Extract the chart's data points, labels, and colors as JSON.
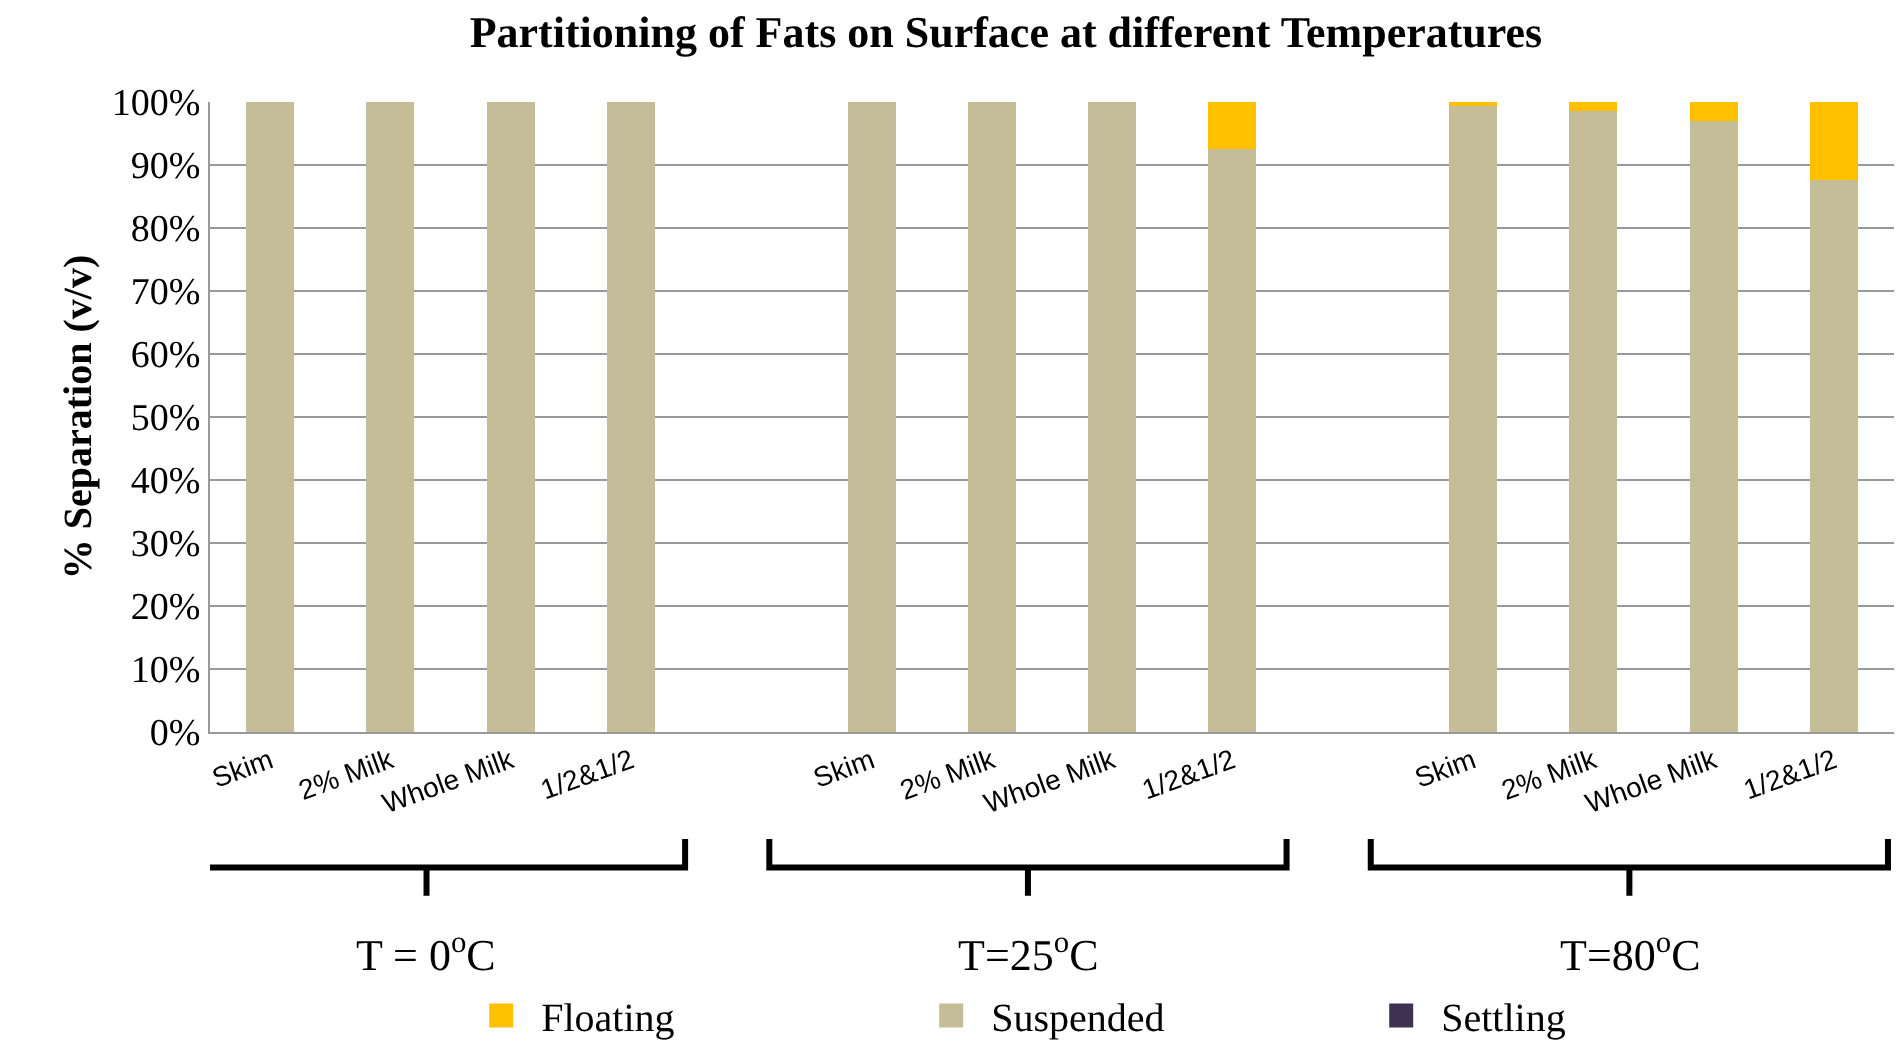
{
  "chart_data": {
    "type": "bar",
    "title": "Partitioning of Fats on Surface at different Temperatures",
    "ylabel": "% Separation (v/v)",
    "categories": [
      "Skim",
      "2% Milk",
      "Whole Milk",
      "1/2&1/2",
      null,
      "Skim",
      "2% Milk",
      "Whole Milk",
      "1/2&1/2",
      null,
      "Skim",
      "2% Milk",
      "Whole Milk",
      "1/2&1/2"
    ],
    "stacked": true,
    "series": [
      {
        "name": "Suspended",
        "color": "#c4bd97",
        "values": [
          100,
          100,
          100,
          100,
          null,
          100,
          100,
          100,
          92.5,
          null,
          99.5,
          98.5,
          97,
          87.7
        ]
      },
      {
        "name": "Floating",
        "color": "#ffc000",
        "values": [
          0,
          0,
          0,
          0,
          null,
          0,
          0,
          0,
          7.5,
          null,
          0.5,
          1.5,
          3,
          12.3
        ]
      },
      {
        "name": "Settling",
        "color": "#3f3151",
        "values": [
          0,
          0,
          0,
          0,
          null,
          0,
          0,
          0,
          0,
          null,
          0,
          0,
          0,
          0
        ]
      }
    ],
    "ylim": [
      0,
      100
    ],
    "yticks": [
      {
        "value": 0,
        "label": "0%"
      },
      {
        "value": 10,
        "label": "10%"
      },
      {
        "value": 20,
        "label": "20%"
      },
      {
        "value": 30,
        "label": "30%"
      },
      {
        "value": 40,
        "label": "40%"
      },
      {
        "value": 50,
        "label": "50%"
      },
      {
        "value": 60,
        "label": "60%"
      },
      {
        "value": 70,
        "label": "70%"
      },
      {
        "value": 80,
        "label": "80%"
      },
      {
        "value": 90,
        "label": "90%"
      },
      {
        "value": 100,
        "label": "100%"
      }
    ],
    "grid": "y",
    "legend": "bottom",
    "annotations": [
      "T = 0$^{o}$C",
      "T=25$^{o}$C",
      "T=80$^{o}$C"
    ]
  }
}
